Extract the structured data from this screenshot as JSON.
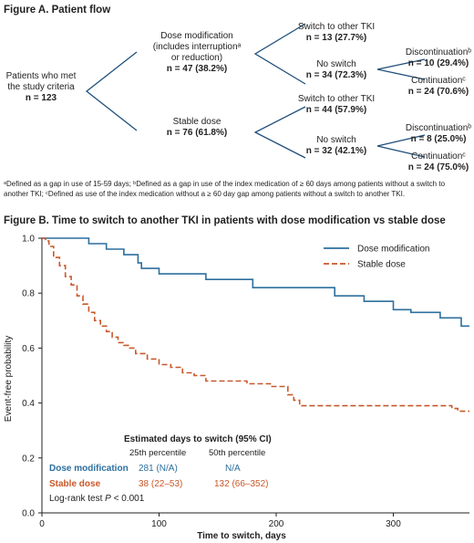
{
  "figure_a": {
    "title": "Figure A. Patient flow",
    "root": {
      "lines": [
        "Patients who met",
        "the study criteria"
      ],
      "n": "n = 123"
    },
    "dose_mod": {
      "lines": [
        "Dose modification",
        "(includes interruptionᵃ",
        "or reduction)"
      ],
      "n": "n = 47 (38.2%)"
    },
    "stable": {
      "lines": [
        "Stable dose"
      ],
      "n": "n = 76 (61.8%)"
    },
    "dm_switch": {
      "lines": [
        "Switch to other TKI"
      ],
      "n": "n = 13 (27.7%)"
    },
    "dm_noswitch": {
      "lines": [
        "No switch"
      ],
      "n": "n = 34 (72.3%)"
    },
    "dm_disc": {
      "lines": [
        "Discontinuationᵇ"
      ],
      "n": "n = 10 (29.4%)"
    },
    "dm_cont": {
      "lines": [
        "Continuationᶜ"
      ],
      "n": "n = 24 (70.6%)"
    },
    "sd_switch": {
      "lines": [
        "Switch to other TKI"
      ],
      "n": "n = 44 (57.9%)"
    },
    "sd_noswitch": {
      "lines": [
        "No switch"
      ],
      "n": "n = 32 (42.1%)"
    },
    "sd_disc": {
      "lines": [
        "Discontinuationᵇ"
      ],
      "n": "n = 8 (25.0%)"
    },
    "sd_cont": {
      "lines": [
        "Continuationᶜ"
      ],
      "n": "n = 24 (75.0%)"
    },
    "footnote": "ᵃDefined as a gap in use of 15-59 days; ᵇDefined as a gap in use of the index medication of ≥ 60 days among patients without a switch to another TKI; ᶜDefined as use of the index medication without a ≥ 60 day gap among patients without a switch to another TKI."
  },
  "chart_data": {
    "type": "line",
    "title": "Figure B. Time to switch to another TKI in patients with dose modification vs stable dose",
    "xlabel": "Time to switch, days",
    "ylabel": "Event-free probability",
    "xlim": [
      0,
      365
    ],
    "ylim": [
      0,
      1.0
    ],
    "xticks": [
      0,
      100,
      200,
      300
    ],
    "yticks": [
      0,
      0.2,
      0.4,
      0.6,
      0.8,
      1.0
    ],
    "legend_position": "top-right",
    "series": [
      {
        "name": "Dose modification",
        "color": "#2d6f9e",
        "dash": false,
        "x": [
          0,
          25,
          40,
          55,
          70,
          80,
          82,
          85,
          100,
          140,
          180,
          210,
          250,
          275,
          300,
          315,
          340,
          358,
          365
        ],
        "y": [
          1.0,
          1.0,
          0.98,
          0.96,
          0.94,
          0.94,
          0.91,
          0.89,
          0.87,
          0.85,
          0.82,
          0.82,
          0.79,
          0.77,
          0.74,
          0.73,
          0.71,
          0.68,
          0.68
        ]
      },
      {
        "name": "Stable dose",
        "color": "#c8582a",
        "dash": true,
        "x": [
          0,
          3,
          6,
          10,
          15,
          20,
          25,
          30,
          35,
          40,
          45,
          50,
          55,
          60,
          65,
          70,
          75,
          80,
          90,
          100,
          110,
          120,
          130,
          140,
          160,
          175,
          195,
          210,
          215,
          220,
          250,
          300,
          350,
          355,
          365
        ],
        "y": [
          1.0,
          0.99,
          0.97,
          0.93,
          0.9,
          0.86,
          0.83,
          0.79,
          0.76,
          0.73,
          0.7,
          0.68,
          0.66,
          0.64,
          0.62,
          0.61,
          0.6,
          0.58,
          0.56,
          0.54,
          0.53,
          0.51,
          0.5,
          0.48,
          0.48,
          0.47,
          0.46,
          0.43,
          0.41,
          0.39,
          0.39,
          0.39,
          0.38,
          0.37,
          0.37
        ]
      }
    ],
    "inset": {
      "title": "Estimated days to switch (95% CI)",
      "col1": "25th percentile",
      "col2": "50th percentile",
      "rows": [
        {
          "label": "Dose modification",
          "p25": "281 (N/A)",
          "p50": "N/A"
        },
        {
          "label": "Stable dose",
          "p25": "38 (22–53)",
          "p50": "132 (66–352)"
        }
      ],
      "logrank_prefix": "Log-rank test ",
      "logrank_p": "P",
      "logrank_suffix": " < 0.001"
    }
  }
}
